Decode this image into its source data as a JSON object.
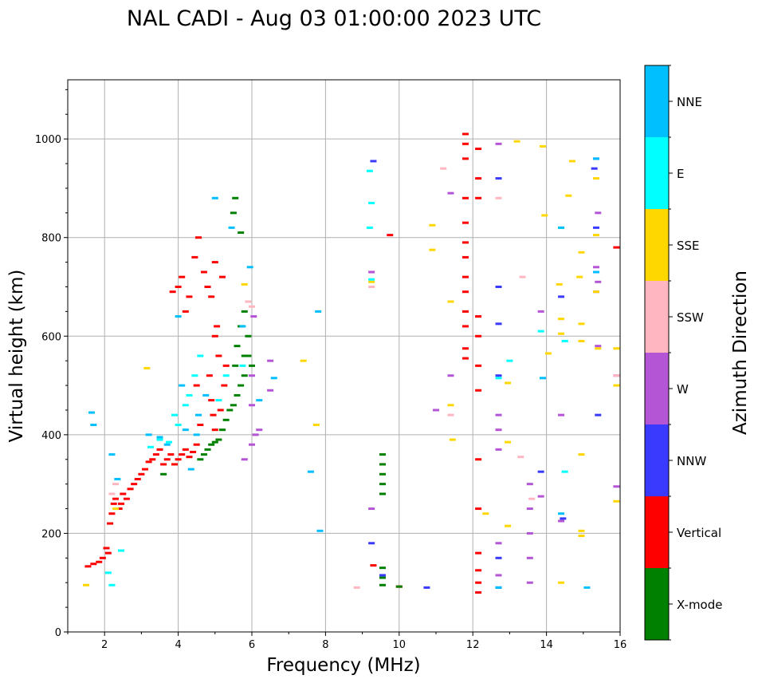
{
  "chart_data": {
    "type": "scatter",
    "title": "NAL CADI - Aug 03 01:00:00 2023 UTC",
    "xlabel": "Frequency (MHz)",
    "ylabel": "Virtual height (km)",
    "xlim": [
      1,
      16
    ],
    "ylim": [
      0,
      1120
    ],
    "xticks": [
      2,
      4,
      6,
      8,
      10,
      12,
      14,
      16
    ],
    "yticks": [
      0,
      200,
      400,
      600,
      800,
      1000
    ],
    "grid": true,
    "colorbar": {
      "label": "Azimuth Direction",
      "categories": [
        {
          "name": "X-mode",
          "color": "#008000"
        },
        {
          "name": "Vertical",
          "color": "#ff0000"
        },
        {
          "name": "NNW",
          "color": "#3a3aff"
        },
        {
          "name": "W",
          "color": "#b455d6"
        },
        {
          "name": "SSW",
          "color": "#ffb6c1"
        },
        {
          "name": "SSE",
          "color": "#ffd700"
        },
        {
          "name": "E",
          "color": "#00ffff"
        },
        {
          "name": "NNE",
          "color": "#00bfff"
        }
      ]
    },
    "series": [
      {
        "name": "Vertical",
        "points": [
          [
            1.55,
            133
          ],
          [
            1.7,
            138
          ],
          [
            1.85,
            142
          ],
          [
            1.95,
            150
          ],
          [
            2.05,
            170
          ],
          [
            2.1,
            160
          ],
          [
            2.15,
            220
          ],
          [
            2.2,
            240
          ],
          [
            2.25,
            260
          ],
          [
            2.3,
            270
          ],
          [
            2.4,
            250
          ],
          [
            2.45,
            260
          ],
          [
            2.5,
            280
          ],
          [
            2.6,
            270
          ],
          [
            2.7,
            290
          ],
          [
            2.8,
            300
          ],
          [
            2.9,
            310
          ],
          [
            3.0,
            320
          ],
          [
            3.1,
            330
          ],
          [
            3.2,
            345
          ],
          [
            3.3,
            350
          ],
          [
            3.4,
            360
          ],
          [
            3.5,
            370
          ],
          [
            3.6,
            340
          ],
          [
            3.7,
            350
          ],
          [
            3.8,
            360
          ],
          [
            3.9,
            340
          ],
          [
            4.0,
            350
          ],
          [
            4.1,
            360
          ],
          [
            4.2,
            370
          ],
          [
            4.3,
            355
          ],
          [
            4.4,
            365
          ],
          [
            4.5,
            380
          ],
          [
            3.85,
            690
          ],
          [
            4.0,
            700
          ],
          [
            4.1,
            720
          ],
          [
            4.2,
            650
          ],
          [
            4.3,
            680
          ],
          [
            4.45,
            760
          ],
          [
            4.55,
            800
          ],
          [
            4.7,
            730
          ],
          [
            4.8,
            700
          ],
          [
            4.9,
            680
          ],
          [
            5.0,
            750
          ],
          [
            5.0,
            600
          ],
          [
            5.1,
            560
          ],
          [
            4.85,
            520
          ],
          [
            4.9,
            470
          ],
          [
            4.95,
            440
          ],
          [
            5.0,
            410
          ],
          [
            5.15,
            450
          ],
          [
            5.25,
            500
          ],
          [
            5.3,
            540
          ],
          [
            4.6,
            420
          ],
          [
            4.5,
            500
          ],
          [
            5.2,
            720
          ],
          [
            5.05,
            620
          ],
          [
            12.15,
            80
          ],
          [
            12.15,
            160
          ],
          [
            12.15,
            250
          ],
          [
            12.15,
            350
          ],
          [
            12.15,
            880
          ],
          [
            12.15,
            920
          ],
          [
            12.15,
            980
          ],
          [
            11.8,
            1010
          ],
          [
            11.8,
            990
          ],
          [
            11.8,
            960
          ],
          [
            11.8,
            880
          ],
          [
            11.8,
            830
          ],
          [
            11.8,
            790
          ],
          [
            11.8,
            760
          ],
          [
            11.8,
            720
          ],
          [
            11.8,
            690
          ],
          [
            11.8,
            650
          ],
          [
            11.8,
            620
          ],
          [
            11.8,
            575
          ],
          [
            11.8,
            555
          ],
          [
            12.15,
            640
          ],
          [
            12.15,
            600
          ],
          [
            12.15,
            540
          ],
          [
            12.15,
            490
          ],
          [
            12.15,
            100
          ],
          [
            12.15,
            125
          ],
          [
            9.3,
            135
          ],
          [
            15.9,
            780
          ],
          [
            10.0,
            92
          ],
          [
            9.75,
            805
          ]
        ]
      },
      {
        "name": "X-mode",
        "points": [
          [
            3.6,
            320
          ],
          [
            4.6,
            350
          ],
          [
            4.7,
            360
          ],
          [
            4.8,
            370
          ],
          [
            4.9,
            380
          ],
          [
            5.0,
            385
          ],
          [
            5.1,
            390
          ],
          [
            5.2,
            410
          ],
          [
            5.3,
            430
          ],
          [
            5.4,
            450
          ],
          [
            5.5,
            460
          ],
          [
            5.6,
            480
          ],
          [
            5.7,
            500
          ],
          [
            5.8,
            520
          ],
          [
            5.55,
            540
          ],
          [
            5.6,
            580
          ],
          [
            5.7,
            620
          ],
          [
            5.8,
            650
          ],
          [
            5.9,
            600
          ],
          [
            5.5,
            850
          ],
          [
            5.55,
            880
          ],
          [
            5.7,
            810
          ],
          [
            5.8,
            560
          ],
          [
            5.9,
            560
          ],
          [
            6.0,
            540
          ],
          [
            9.55,
            360
          ],
          [
            9.55,
            340
          ],
          [
            9.55,
            320
          ],
          [
            9.55,
            300
          ],
          [
            9.55,
            280
          ],
          [
            9.55,
            130
          ],
          [
            9.55,
            110
          ],
          [
            9.55,
            95
          ],
          [
            10.0,
            92
          ]
        ]
      },
      {
        "name": "NNW",
        "points": [
          [
            9.3,
            955
          ],
          [
            9.25,
            180
          ],
          [
            12.7,
            920
          ],
          [
            12.7,
            700
          ],
          [
            12.7,
            625
          ],
          [
            12.7,
            520
          ],
          [
            12.7,
            150
          ],
          [
            12.7,
            90
          ],
          [
            13.85,
            325
          ],
          [
            14.4,
            680
          ],
          [
            14.45,
            230
          ],
          [
            15.3,
            940
          ],
          [
            15.35,
            960
          ],
          [
            15.35,
            820
          ],
          [
            15.35,
            690
          ],
          [
            15.4,
            440
          ],
          [
            10.75,
            90
          ],
          [
            9.55,
            115
          ]
        ]
      },
      {
        "name": "W",
        "points": [
          [
            5.8,
            350
          ],
          [
            6.0,
            380
          ],
          [
            6.1,
            400
          ],
          [
            6.2,
            410
          ],
          [
            6.0,
            520
          ],
          [
            6.0,
            460
          ],
          [
            6.5,
            490
          ],
          [
            6.5,
            550
          ],
          [
            6.05,
            640
          ],
          [
            9.25,
            250
          ],
          [
            9.25,
            730
          ],
          [
            11.4,
            520
          ],
          [
            11.0,
            450
          ],
          [
            11.4,
            890
          ],
          [
            12.7,
            440
          ],
          [
            12.7,
            410
          ],
          [
            12.7,
            370
          ],
          [
            12.7,
            180
          ],
          [
            12.7,
            115
          ],
          [
            12.7,
            990
          ],
          [
            13.55,
            300
          ],
          [
            13.55,
            250
          ],
          [
            13.55,
            200
          ],
          [
            13.55,
            150
          ],
          [
            13.55,
            100
          ],
          [
            13.85,
            650
          ],
          [
            13.85,
            275
          ],
          [
            14.4,
            440
          ],
          [
            14.4,
            225
          ],
          [
            15.4,
            850
          ],
          [
            15.35,
            740
          ],
          [
            15.4,
            710
          ],
          [
            15.4,
            580
          ],
          [
            15.9,
            520
          ],
          [
            15.9,
            295
          ]
        ]
      },
      {
        "name": "SSW",
        "points": [
          [
            2.2,
            280
          ],
          [
            2.3,
            300
          ],
          [
            5.9,
            670
          ],
          [
            6.0,
            660
          ],
          [
            8.85,
            90
          ],
          [
            11.2,
            940
          ],
          [
            12.7,
            880
          ],
          [
            13.3,
            355
          ],
          [
            13.35,
            720
          ],
          [
            13.6,
            270
          ],
          [
            15.9,
            520
          ],
          [
            11.4,
            440
          ],
          [
            9.25,
            700
          ]
        ]
      },
      {
        "name": "SSE",
        "points": [
          [
            1.5,
            95
          ],
          [
            2.3,
            250
          ],
          [
            3.15,
            535
          ],
          [
            5.8,
            705
          ],
          [
            7.4,
            550
          ],
          [
            7.75,
            420
          ],
          [
            10.9,
            825
          ],
          [
            10.9,
            775
          ],
          [
            11.4,
            670
          ],
          [
            11.45,
            390
          ],
          [
            12.35,
            240
          ],
          [
            12.95,
            385
          ],
          [
            12.95,
            215
          ],
          [
            12.95,
            505
          ],
          [
            13.2,
            995
          ],
          [
            13.9,
            985
          ],
          [
            13.95,
            845
          ],
          [
            14.05,
            565
          ],
          [
            14.35,
            705
          ],
          [
            14.4,
            635
          ],
          [
            14.4,
            605
          ],
          [
            14.4,
            100
          ],
          [
            14.6,
            885
          ],
          [
            14.7,
            955
          ],
          [
            14.95,
            770
          ],
          [
            14.9,
            720
          ],
          [
            14.95,
            625
          ],
          [
            14.95,
            590
          ],
          [
            14.95,
            360
          ],
          [
            14.95,
            205
          ],
          [
            14.95,
            195
          ],
          [
            15.35,
            920
          ],
          [
            15.35,
            805
          ],
          [
            15.35,
            690
          ],
          [
            15.4,
            575
          ],
          [
            15.9,
            575
          ],
          [
            15.9,
            500
          ],
          [
            15.9,
            265
          ],
          [
            11.4,
            460
          ],
          [
            9.25,
            710
          ]
        ]
      },
      {
        "name": "E",
        "points": [
          [
            2.1,
            120
          ],
          [
            2.2,
            95
          ],
          [
            2.45,
            165
          ],
          [
            3.25,
            375
          ],
          [
            3.5,
            390
          ],
          [
            3.75,
            385
          ],
          [
            3.9,
            440
          ],
          [
            4.0,
            420
          ],
          [
            4.2,
            460
          ],
          [
            4.3,
            480
          ],
          [
            4.45,
            520
          ],
          [
            4.6,
            560
          ],
          [
            5.1,
            470
          ],
          [
            5.3,
            520
          ],
          [
            5.75,
            540
          ],
          [
            9.2,
            935
          ],
          [
            9.25,
            870
          ],
          [
            9.2,
            820
          ],
          [
            9.25,
            715
          ],
          [
            13.0,
            550
          ],
          [
            13.85,
            610
          ],
          [
            14.4,
            820
          ],
          [
            14.5,
            590
          ],
          [
            14.5,
            325
          ],
          [
            12.7,
            515
          ]
        ]
      },
      {
        "name": "NNE",
        "points": [
          [
            1.7,
            420
          ],
          [
            1.65,
            445
          ],
          [
            2.2,
            360
          ],
          [
            2.35,
            310
          ],
          [
            3.2,
            400
          ],
          [
            3.5,
            395
          ],
          [
            3.7,
            380
          ],
          [
            4.0,
            640
          ],
          [
            4.1,
            500
          ],
          [
            4.2,
            410
          ],
          [
            4.35,
            330
          ],
          [
            4.5,
            400
          ],
          [
            4.55,
            440
          ],
          [
            4.75,
            480
          ],
          [
            5.0,
            880
          ],
          [
            5.45,
            820
          ],
          [
            5.75,
            620
          ],
          [
            5.95,
            740
          ],
          [
            6.2,
            470
          ],
          [
            6.6,
            515
          ],
          [
            7.6,
            325
          ],
          [
            7.85,
            205
          ],
          [
            7.8,
            650
          ],
          [
            12.7,
            90
          ],
          [
            13.9,
            515
          ],
          [
            14.4,
            240
          ],
          [
            15.1,
            90
          ],
          [
            15.35,
            960
          ],
          [
            15.35,
            730
          ],
          [
            14.4,
            820
          ]
        ]
      }
    ]
  }
}
